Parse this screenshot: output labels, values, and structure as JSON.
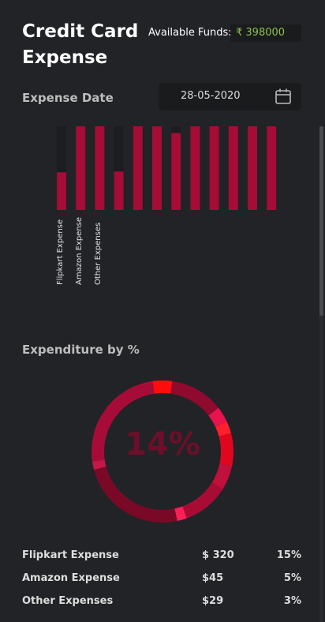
{
  "header": {
    "title": "Credit Card Expense",
    "funds_label": "Available Funds:",
    "funds_value": "₹ 398000"
  },
  "date": {
    "label": "Expense Date",
    "value": "28-05-2020",
    "icon": "calendar-icon"
  },
  "chart_data": {
    "type": "bar",
    "categories": [
      "Flipkart Expense",
      "Amazon Expense",
      "Other Expenses",
      "",
      "",
      "",
      "",
      "",
      "",
      "",
      "",
      "",
      ""
    ],
    "values": [
      45,
      100,
      100,
      46,
      100,
      100,
      92,
      100,
      100,
      100,
      100,
      100,
      100
    ],
    "ylim": [
      0,
      100
    ]
  },
  "donut": {
    "section_title": "Expenditure by %",
    "center_text": "14%"
  },
  "legend": [
    {
      "name": "Flipkart Expense",
      "amount": "$ 320",
      "percent": "15%"
    },
    {
      "name": "Amazon Expense",
      "amount": "$45",
      "percent": "5%"
    },
    {
      "name": "Other Expenses",
      "amount": "$29",
      "percent": "3%"
    }
  ],
  "colors": {
    "bar": "#a50c36",
    "bar_track": "#1c1d20",
    "accent_green": "#8bc34a"
  }
}
